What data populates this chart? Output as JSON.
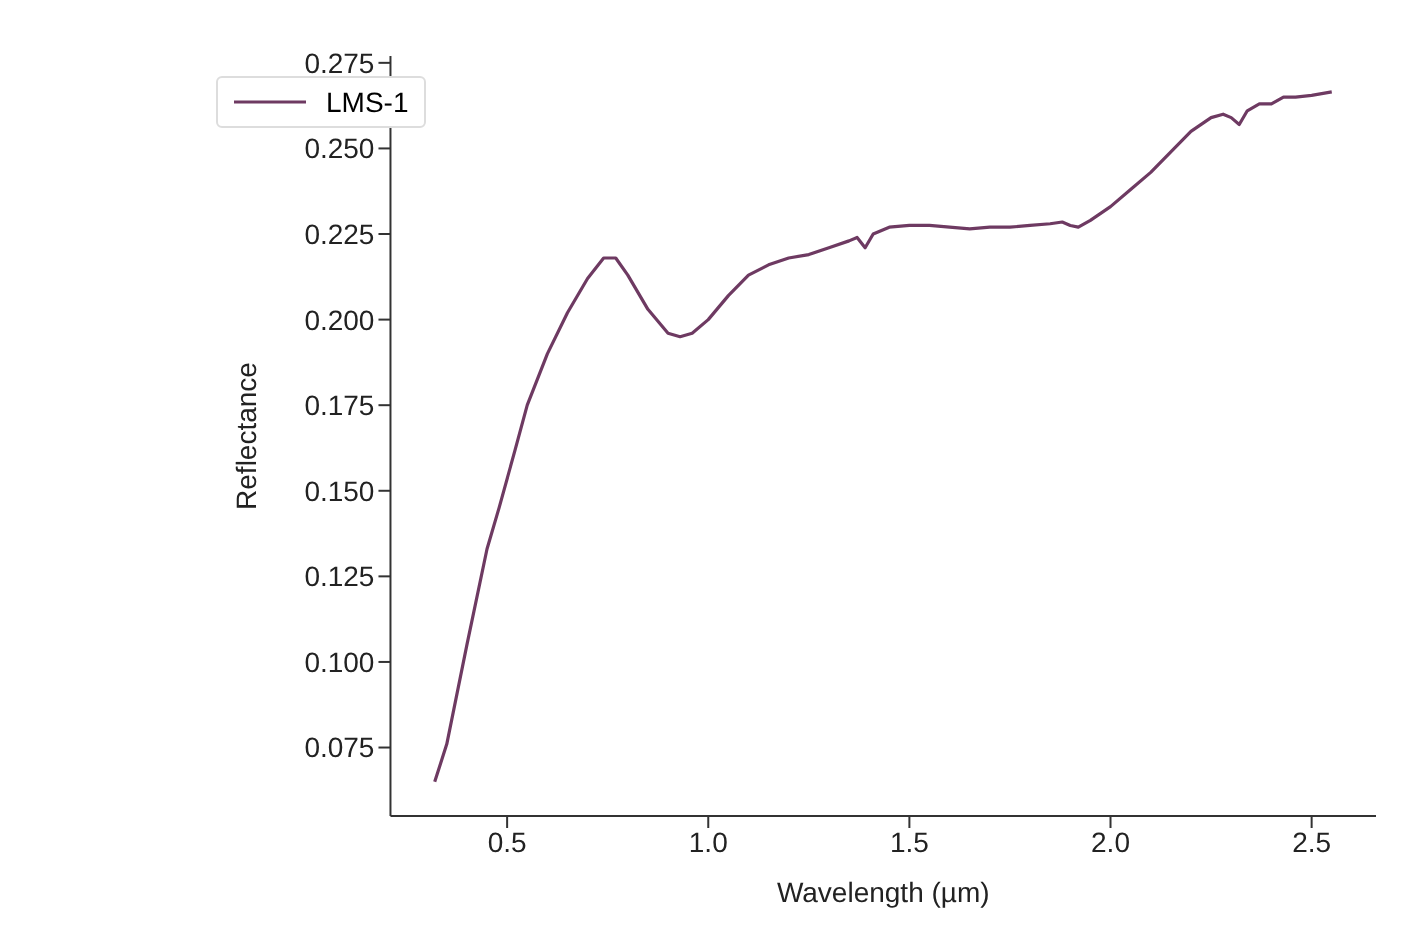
{
  "chart_data": {
    "type": "line",
    "xlabel": "Wavelength (µm)",
    "ylabel": "Reflectance",
    "xlim": [
      0.21,
      2.66
    ],
    "xticks": [
      0.5,
      {
        "value": 1,
        "label": "1.0"
      },
      1.5,
      {
        "value": 2,
        "label": "2.0"
      },
      2.5
    ],
    "ylim": [
      0.055,
      0.277
    ],
    "yticks": [
      0.075,
      {
        "value": 0.1,
        "label": "0.100"
      },
      0.125,
      {
        "value": 0.15,
        "label": "0.150"
      },
      0.175,
      {
        "value": 0.2,
        "label": "0.200"
      },
      0.225,
      {
        "value": 0.25,
        "label": "0.250"
      },
      0.275
    ],
    "grid": false,
    "legend": "top left",
    "series": [
      {
        "name": "LMS-1",
        "color": "#6e3a62",
        "x": [
          0.32,
          0.35,
          0.4,
          0.45,
          0.48,
          0.52,
          0.55,
          0.6,
          0.65,
          0.7,
          0.74,
          0.77,
          0.8,
          0.85,
          0.9,
          0.93,
          0.96,
          1.0,
          1.05,
          1.1,
          1.15,
          1.2,
          1.25,
          1.3,
          1.35,
          1.37,
          1.39,
          1.41,
          1.45,
          1.5,
          1.55,
          1.6,
          1.65,
          1.7,
          1.75,
          1.8,
          1.85,
          1.88,
          1.9,
          1.92,
          1.95,
          2.0,
          2.05,
          2.1,
          2.15,
          2.2,
          2.25,
          2.28,
          2.3,
          2.32,
          2.34,
          2.37,
          2.4,
          2.43,
          2.46,
          2.5,
          2.55
        ],
        "values": [
          0.065,
          0.076,
          0.105,
          0.133,
          0.145,
          0.162,
          0.175,
          0.19,
          0.202,
          0.212,
          0.218,
          0.218,
          0.213,
          0.203,
          0.196,
          0.195,
          0.196,
          0.2,
          0.207,
          0.213,
          0.216,
          0.218,
          0.219,
          0.221,
          0.223,
          0.224,
          0.221,
          0.225,
          0.227,
          0.2275,
          0.2275,
          0.227,
          0.2265,
          0.227,
          0.227,
          0.2275,
          0.228,
          0.2285,
          0.2275,
          0.227,
          0.229,
          0.233,
          0.238,
          0.243,
          0.249,
          0.255,
          0.259,
          0.26,
          0.259,
          0.257,
          0.261,
          0.263,
          0.263,
          0.265,
          0.265,
          0.2655,
          0.2665
        ]
      }
    ]
  }
}
